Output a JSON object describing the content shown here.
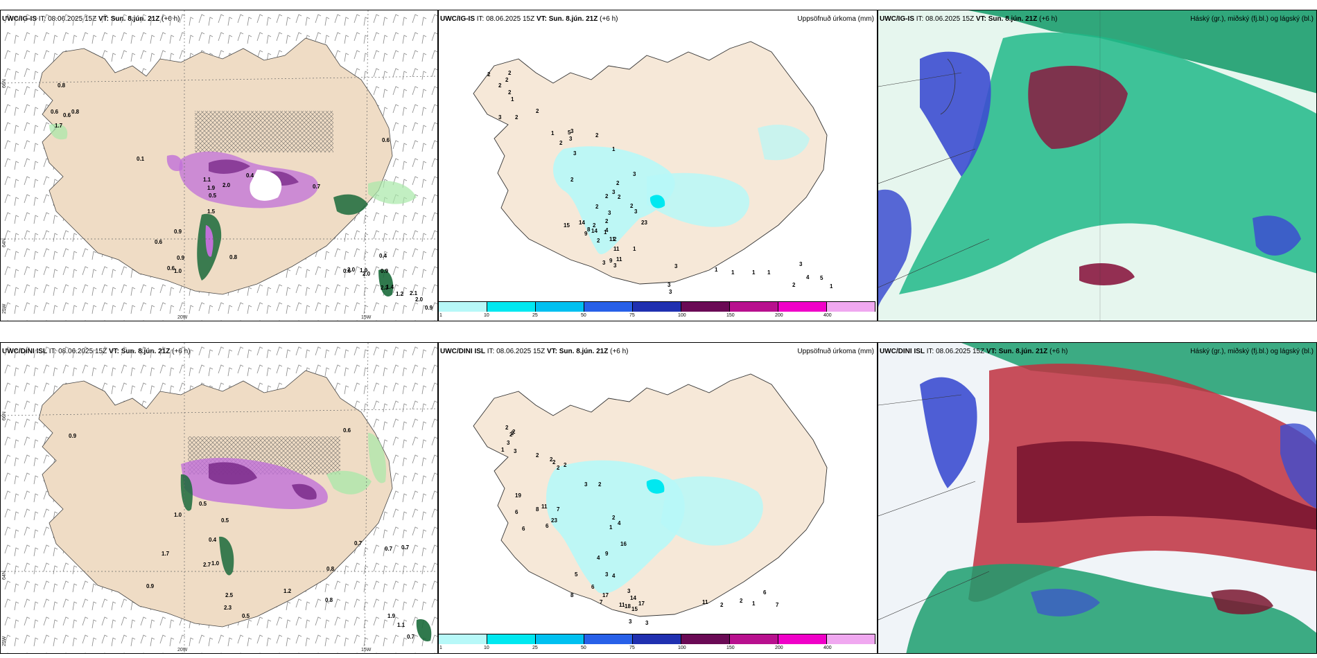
{
  "rows": [
    {
      "model": "UWC/IG-IS",
      "it": "IT: 08.06.2025 15Z",
      "vt": "VT: Sun. 8.jún. 21Z",
      "lead": "(+6 h)",
      "wind_values": [
        "0.8",
        "0.6",
        "0.6",
        "0.8",
        "1.7",
        "0.1",
        "1.1",
        "1.9",
        "2.0",
        "0.5",
        "0.6",
        "1.5",
        "0.4",
        "0.7",
        "0.9",
        "0.6",
        "0.9",
        "0.6",
        "0.8",
        "1.0",
        "0.9",
        "2.0",
        "1.0",
        "0.4",
        "2.3",
        "2.0",
        "0.6",
        "1.4",
        "1.2",
        "2.1",
        "2.0",
        "0.9"
      ],
      "precip_values": [
        "2",
        "2",
        "2",
        "2",
        "2",
        "1",
        "3",
        "2",
        "2",
        "1",
        "3",
        "2",
        "3",
        "3",
        "5",
        "2",
        "1",
        "3",
        "2",
        "3",
        "2",
        "3",
        "1",
        "2",
        "14",
        "2",
        "2",
        "2",
        "2",
        "2",
        "2",
        "1",
        "23",
        "2",
        "3",
        "14",
        "15",
        "8",
        "9",
        "4",
        "11",
        "11",
        "3",
        "3",
        "9",
        "11",
        "3",
        "3",
        "3",
        "1",
        "1",
        "1",
        "1",
        "3",
        "4",
        "2",
        "5",
        "1"
      ]
    },
    {
      "model": "UWC/DINI ISL",
      "it": "IT: 08.06.2025 15Z",
      "vt": "VT: Sun. 8.jún. 21Z",
      "lead": "(+6 h)",
      "wind_values": [
        "0.9",
        "0.6",
        "0.5",
        "1.0",
        "0.7",
        "0.4",
        "0.5",
        "1.7",
        "2.7",
        "1.0",
        "0.8",
        "0.9",
        "2.5",
        "0.5",
        "1.2",
        "0.8",
        "0.7",
        "0.7",
        "1.9",
        "1.1",
        "0.7",
        "2.3"
      ],
      "precip_values": [
        "2",
        "2",
        "2",
        "2",
        "3",
        "3",
        "1",
        "2",
        "2",
        "2",
        "2",
        "2",
        "3",
        "2",
        "19",
        "8",
        "7",
        "11",
        "6",
        "6",
        "6",
        "23",
        "2",
        "4",
        "1",
        "16",
        "9",
        "4",
        "3",
        "4",
        "5",
        "6",
        "8",
        "3",
        "17",
        "7",
        "11",
        "14",
        "18",
        "15",
        "17",
        "3",
        "3",
        "11",
        "2",
        "2",
        "1",
        "6",
        "7"
      ]
    }
  ],
  "precip_title": "Uppsöfnuð úrkoma (mm)",
  "cloud_title": "Háský (gr.), miðský (fj.bl.) og lágský (bl.)",
  "axes": {
    "lon_20": "20W",
    "lon_15": "15W",
    "lon_25": "25W",
    "lat_66": "66N",
    "lat_64": "64N"
  },
  "colorbar": {
    "ticks": [
      "1",
      "10",
      "25",
      "50",
      "75",
      "100",
      "150",
      "200",
      "400"
    ],
    "colors": [
      "#b7f8f8",
      "#00e8f0",
      "#00c0f0",
      "#2860e8",
      "#2030b0",
      "#6a0a55",
      "#b8108e",
      "#f000c8",
      "#f0a8f0"
    ]
  },
  "colors": {
    "land": "#f6e8d8",
    "land_dark": "#efdcc5",
    "high_cloud": "#1c9e6e",
    "mid_cloud": "#e03c4a",
    "low_cloud": "#3c4ed0",
    "precip_light": "#b7f8f8"
  }
}
